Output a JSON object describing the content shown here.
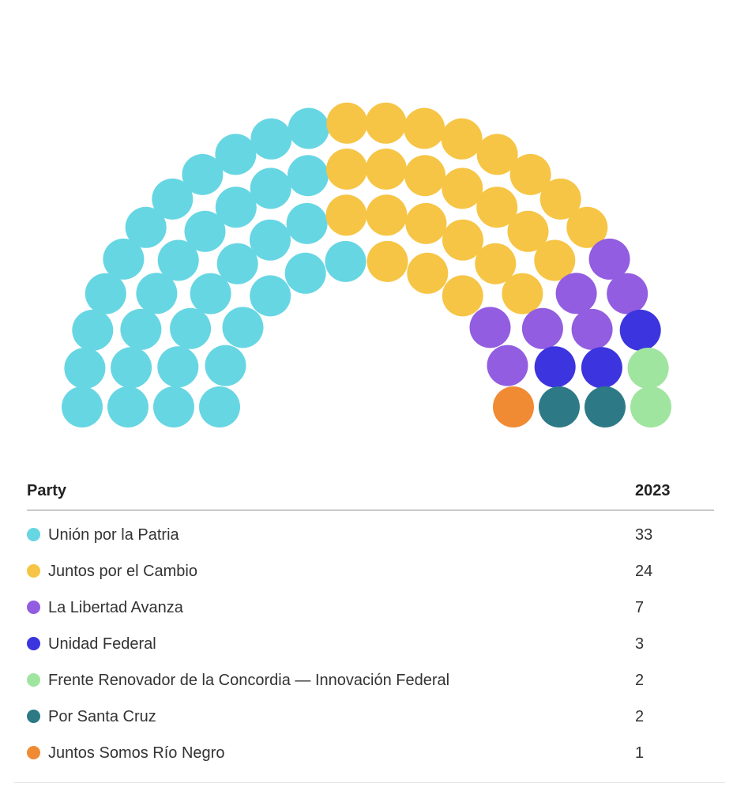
{
  "chart_data": {
    "type": "parliament",
    "total_seats": 72,
    "series": [
      {
        "name": "Unión por la Patria",
        "value": 33,
        "color": "#67d6e3"
      },
      {
        "name": "Juntos por el Cambio",
        "value": 24,
        "color": "#f6c545"
      },
      {
        "name": "La Libertad Avanza",
        "value": 7,
        "color": "#925de0"
      },
      {
        "name": "Unidad Federal",
        "value": 3,
        "color": "#3c34de"
      },
      {
        "name": "Frente Renovador de la Concordia — Innovación Federal",
        "value": 2,
        "color": "#9fe59f"
      },
      {
        "name": "Por Santa Cruz",
        "value": 2,
        "color": "#2d7a86"
      },
      {
        "name": "Juntos Somos Río Negro",
        "value": 1,
        "color": "#f08b34"
      }
    ]
  },
  "table": {
    "header_party": "Party",
    "header_year": "2023"
  }
}
